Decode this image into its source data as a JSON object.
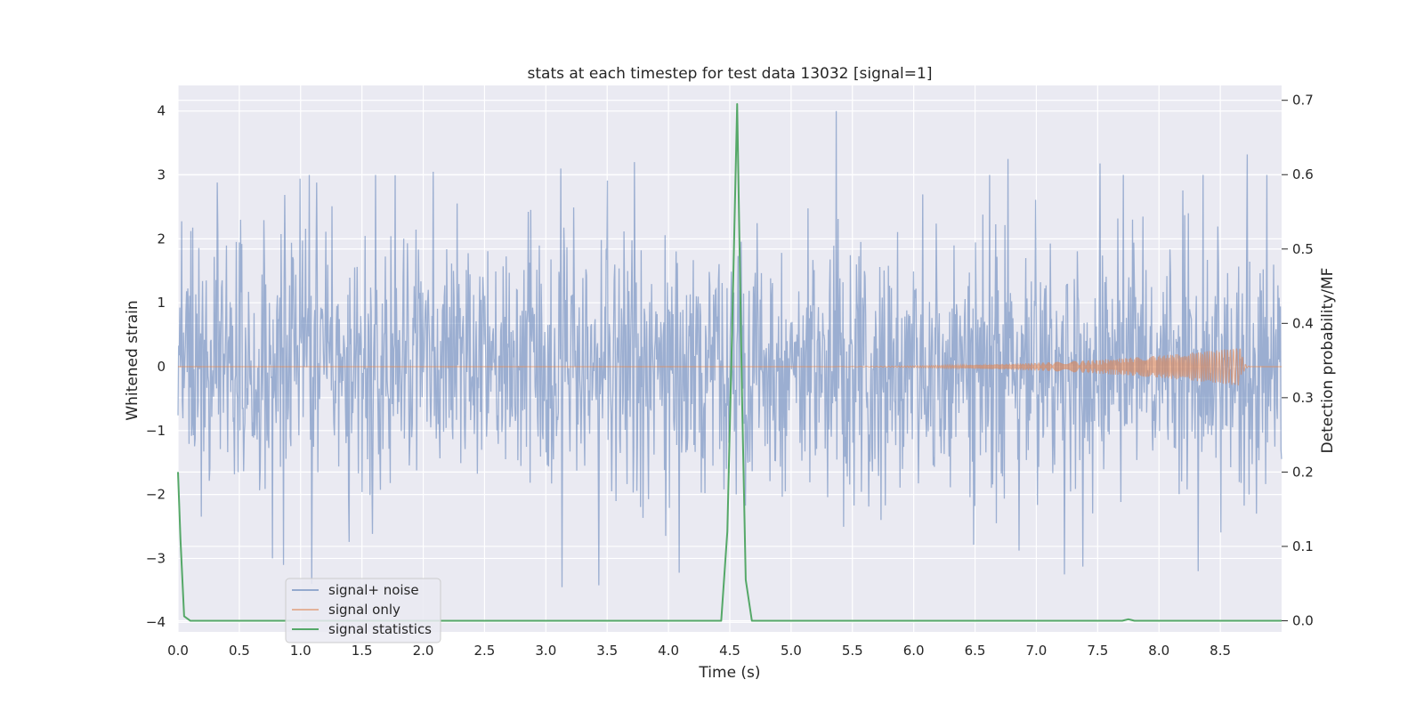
{
  "chart_data": {
    "type": "line",
    "title": "stats at each timestep for test data 13032 [signal=1]",
    "xlabel": "Time (s)",
    "ylabel": "Whitened strain",
    "y2label": "Detection probability/MF",
    "xlim": [
      0.0,
      9.0
    ],
    "ylim": [
      -4.15,
      4.4
    ],
    "y2lim": [
      -0.015,
      0.72
    ],
    "xticks": [
      "0.0",
      "0.5",
      "1.0",
      "1.5",
      "2.0",
      "2.5",
      "3.0",
      "3.5",
      "4.0",
      "4.5",
      "5.0",
      "5.5",
      "6.0",
      "6.5",
      "7.0",
      "7.5",
      "8.0",
      "8.5"
    ],
    "xtick_values": [
      0,
      0.5,
      1,
      1.5,
      2,
      2.5,
      3,
      3.5,
      4,
      4.5,
      5,
      5.5,
      6,
      6.5,
      7,
      7.5,
      8,
      8.5
    ],
    "yticks": [
      "−4",
      "−3",
      "−2",
      "−1",
      "0",
      "1",
      "2",
      "3",
      "4"
    ],
    "ytick_values": [
      -4,
      -3,
      -2,
      -1,
      0,
      1,
      2,
      3,
      4
    ],
    "y2ticks": [
      "0.0",
      "0.1",
      "0.2",
      "0.3",
      "0.4",
      "0.5",
      "0.6",
      "0.7"
    ],
    "y2tick_values": [
      0,
      0.1,
      0.2,
      0.3,
      0.4,
      0.5,
      0.6,
      0.7
    ],
    "grid": true,
    "legend_placement": "lower-left",
    "series": [
      {
        "name": "signal+ noise",
        "color": "#4c72b0",
        "description_values": "noisy whitened strain, amplitude roughly between -3.5 and 4.0",
        "noise_sigma": 1.0,
        "peaks": [
          [
            5.37,
            4.0
          ],
          [
            8.72,
            3.32
          ],
          [
            0.32,
            2.88
          ],
          [
            3.12,
            3.1
          ],
          [
            3.72,
            3.2
          ],
          [
            1.07,
            3.0
          ],
          [
            2.08,
            3.05
          ],
          [
            6.77,
            3.25
          ],
          [
            7.52,
            3.18
          ],
          [
            8.88,
            3.0
          ],
          [
            3.43,
            -3.42
          ],
          [
            3.13,
            -3.45
          ],
          [
            1.09,
            -3.4
          ],
          [
            7.23,
            -3.25
          ],
          [
            8.32,
            -3.2
          ],
          [
            0.77,
            -3.0
          ]
        ]
      },
      {
        "name": "signal only",
        "color": "#dd8452",
        "chirp": {
          "t_start": 4.6,
          "t_merge": 8.67,
          "t_end": 9.0,
          "peak_amplitude": 0.3
        }
      },
      {
        "name": "signal statistics",
        "color": "#55a868",
        "axis": "right",
        "x": [
          0.0,
          0.02,
          0.05,
          0.1,
          0.2,
          4.43,
          4.48,
          4.52,
          4.56,
          4.6,
          4.63,
          4.68,
          4.7,
          7.7,
          7.75,
          7.8,
          9.0
        ],
        "values": [
          0.2,
          0.11,
          0.006,
          0.0,
          0.0,
          0.0,
          0.12,
          0.4,
          0.695,
          0.3,
          0.055,
          0.0,
          0.0,
          0.0,
          0.002,
          0.0,
          0.0
        ]
      }
    ]
  }
}
